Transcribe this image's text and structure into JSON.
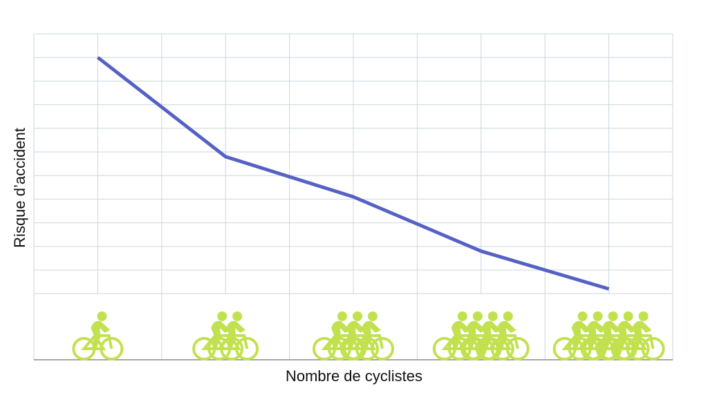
{
  "chart_data": {
    "type": "line",
    "x_label": "Nombre de cyclistes",
    "y_label": "Risque d’accident",
    "categories": [
      null,
      null,
      null,
      null,
      null
    ],
    "series": [
      {
        "color": "#5561c4",
        "values": [
          10.0,
          5.8,
          4.1,
          1.8,
          0.2
        ]
      }
    ],
    "ylim": [
      -2.8,
      11
    ],
    "yticks": [
      0,
      1,
      2,
      3,
      4,
      5,
      6,
      7,
      8,
      9,
      10,
      11
    ],
    "grid": true
  }
}
